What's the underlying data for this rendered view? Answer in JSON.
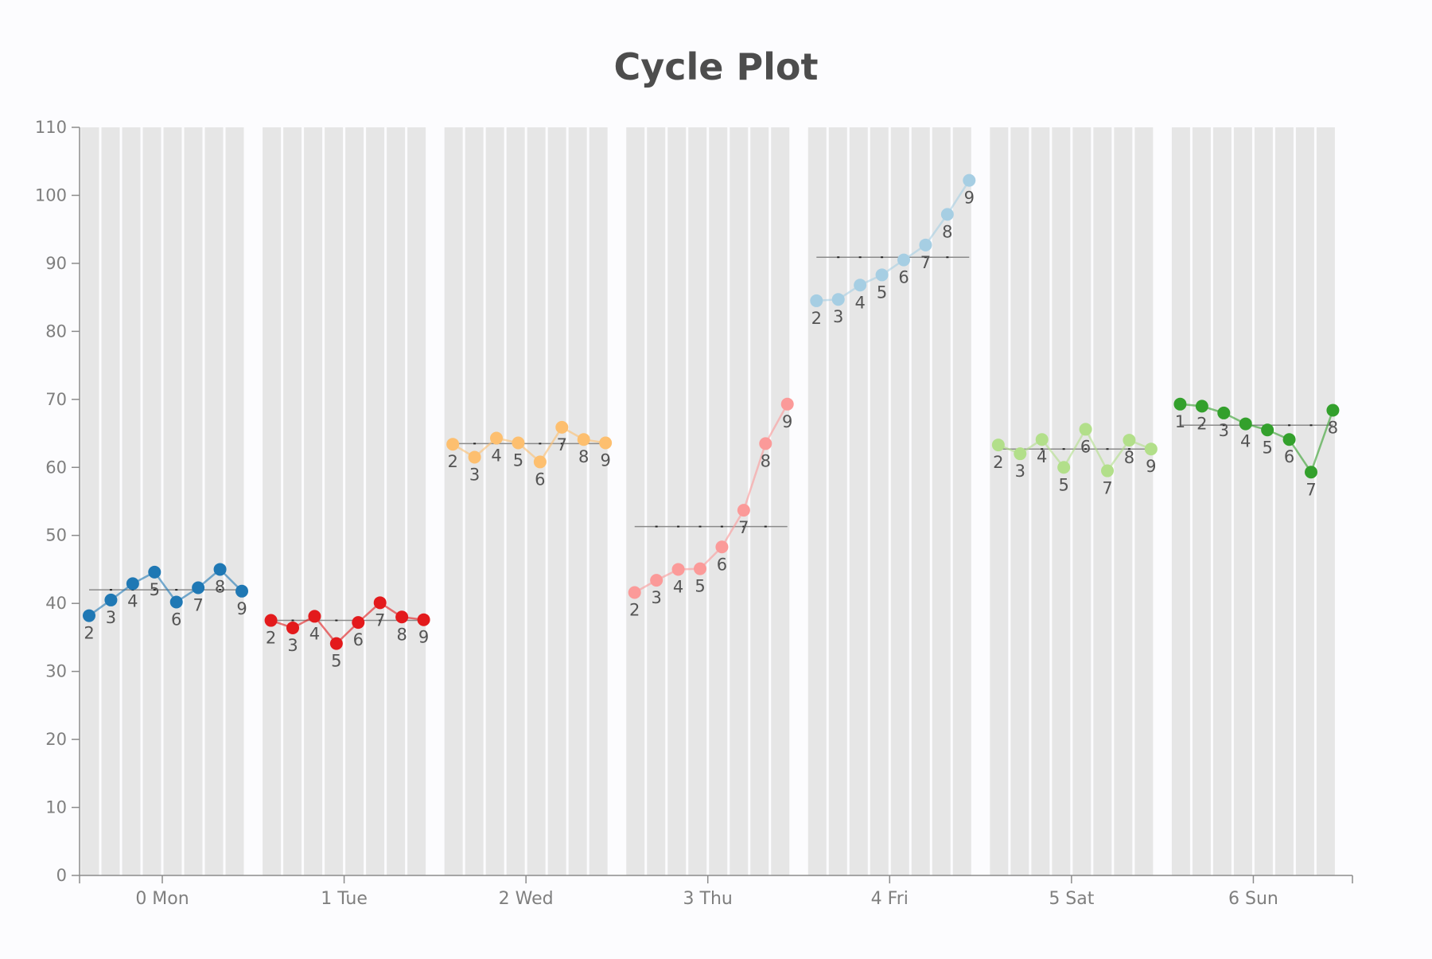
{
  "chart_data": {
    "type": "line",
    "title": "Cycle Plot",
    "xlabel": "",
    "ylabel": "",
    "ylim": [
      0,
      110
    ],
    "yticks": [
      0,
      10,
      20,
      30,
      40,
      50,
      60,
      70,
      80,
      90,
      100,
      110
    ],
    "grid": "vertical bands per cycle position",
    "legend": "none",
    "groups": [
      {
        "label": "0 Mon",
        "color": "#1f78b4",
        "mean": 42,
        "positions": [
          2,
          3,
          4,
          5,
          6,
          7,
          8,
          9
        ],
        "values": [
          38.2,
          40.5,
          42.9,
          44.6,
          40.2,
          42.3,
          45.0,
          41.8
        ]
      },
      {
        "label": "1 Tue",
        "color": "#e31a1c",
        "mean": 37.5,
        "positions": [
          2,
          3,
          4,
          5,
          6,
          7,
          8,
          9
        ],
        "values": [
          37.5,
          36.4,
          38.1,
          34.1,
          37.2,
          40.1,
          38.0,
          37.6
        ]
      },
      {
        "label": "2 Wed",
        "color": "#fdbf6f",
        "mean": 63.5,
        "positions": [
          2,
          3,
          4,
          5,
          6,
          7,
          8,
          9
        ],
        "values": [
          63.4,
          61.5,
          64.3,
          63.6,
          60.8,
          65.9,
          64.1,
          63.6
        ]
      },
      {
        "label": "3 Thu",
        "color": "#fb9a99",
        "mean": 51.3,
        "positions": [
          2,
          3,
          4,
          5,
          6,
          7,
          8,
          9
        ],
        "values": [
          41.6,
          43.4,
          45.0,
          45.1,
          48.3,
          53.7,
          63.5,
          69.3
        ]
      },
      {
        "label": "4 Fri",
        "color": "#a6cee3",
        "mean": 90.9,
        "positions": [
          2,
          3,
          4,
          5,
          6,
          7,
          8,
          9
        ],
        "values": [
          84.5,
          84.7,
          86.8,
          88.3,
          90.5,
          92.7,
          97.2,
          102.2
        ]
      },
      {
        "label": "5 Sat",
        "color": "#b2df8a",
        "mean": 62.7,
        "positions": [
          2,
          3,
          4,
          5,
          6,
          7,
          8,
          9
        ],
        "values": [
          63.3,
          62.0,
          64.1,
          60.0,
          65.6,
          59.5,
          64.0,
          62.7
        ]
      },
      {
        "label": "6 Sun",
        "color": "#33a02c",
        "mean": 66.2,
        "positions": [
          1,
          2,
          3,
          4,
          5,
          6,
          7,
          8
        ],
        "values": [
          69.3,
          69.0,
          68.0,
          66.4,
          65.5,
          64.1,
          59.3,
          68.4
        ]
      }
    ]
  }
}
